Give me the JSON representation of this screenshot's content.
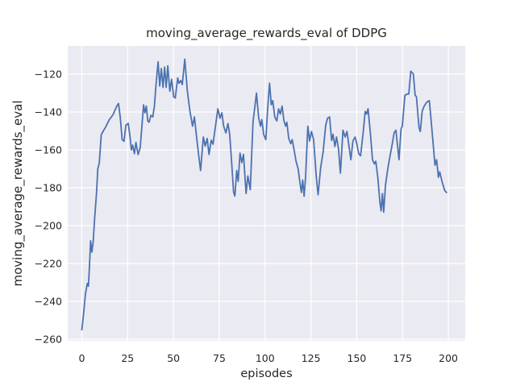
{
  "colors": {
    "line": "#4c72b0",
    "plot_background": "#eaeaf2",
    "grid": "#ffffff",
    "text": "#262626",
    "figure_background": "#ffffff"
  },
  "chart_data": {
    "type": "line",
    "title": "moving_average_rewards_eval of DDPG",
    "xlabel": "episodes",
    "ylabel": "moving_average_rewards_eval",
    "grid": true,
    "legend": false,
    "xlim": [
      -7.7,
      209.2
    ],
    "ylim": [
      -260.85,
      -105.1
    ],
    "x_ticks": [
      0,
      25,
      50,
      75,
      100,
      125,
      150,
      175,
      200
    ],
    "x_tick_labels": [
      "0",
      "25",
      "50",
      "75",
      "100",
      "125",
      "150",
      "175",
      "200"
    ],
    "y_ticks": [
      -260,
      -240,
      -220,
      -200,
      -180,
      -160,
      -140,
      -120
    ],
    "y_tick_labels": [
      "−260",
      "−240",
      "−220",
      "−200",
      "−180",
      "−160",
      "−140",
      "−120"
    ],
    "series": [
      {
        "name": "moving_average_rewards_eval",
        "color": "#4c72b0",
        "points": [
          [
            0,
            -255
          ],
          [
            1,
            -246
          ],
          [
            2,
            -236
          ],
          [
            3,
            -230.5
          ],
          [
            3.6,
            -232
          ],
          [
            4.2,
            -221
          ],
          [
            4.8,
            -208
          ],
          [
            5.5,
            -214
          ],
          [
            6.2,
            -208.5
          ],
          [
            7,
            -196
          ],
          [
            8,
            -183
          ],
          [
            8.7,
            -170
          ],
          [
            9.5,
            -167
          ],
          [
            10.6,
            -152
          ],
          [
            12,
            -149.5
          ],
          [
            13,
            -148
          ],
          [
            15,
            -144
          ],
          [
            17,
            -141.5
          ],
          [
            19,
            -137
          ],
          [
            20,
            -135.5
          ],
          [
            21,
            -143
          ],
          [
            22,
            -154.5
          ],
          [
            23,
            -155.5
          ],
          [
            24,
            -147
          ],
          [
            25.3,
            -146
          ],
          [
            26.3,
            -153
          ],
          [
            27,
            -160
          ],
          [
            27.7,
            -157.5
          ],
          [
            28.7,
            -162
          ],
          [
            29.5,
            -156
          ],
          [
            30.7,
            -162.5
          ],
          [
            31.8,
            -159
          ],
          [
            32.8,
            -147
          ],
          [
            33.7,
            -136.2
          ],
          [
            34.4,
            -140.4
          ],
          [
            35.2,
            -136.9
          ],
          [
            36,
            -144.7
          ],
          [
            36.7,
            -145.4
          ],
          [
            37.7,
            -141.8
          ],
          [
            38.7,
            -142.6
          ],
          [
            39.6,
            -136.9
          ],
          [
            40.6,
            -124.1
          ],
          [
            41.6,
            -113.5
          ],
          [
            42.5,
            -126.3
          ],
          [
            43.4,
            -117
          ],
          [
            44.3,
            -127
          ],
          [
            45.2,
            -116.3
          ],
          [
            46,
            -127
          ],
          [
            46.9,
            -115.6
          ],
          [
            48,
            -129
          ],
          [
            49,
            -122.7
          ],
          [
            50.1,
            -132
          ],
          [
            51,
            -132.6
          ],
          [
            52.3,
            -122
          ],
          [
            53,
            -124.8
          ],
          [
            54,
            -123.4
          ],
          [
            54.8,
            -125.5
          ],
          [
            56.2,
            -112.1
          ],
          [
            57.6,
            -129
          ],
          [
            59,
            -139.7
          ],
          [
            60.4,
            -147.5
          ],
          [
            61.4,
            -142.6
          ],
          [
            62.6,
            -153.2
          ],
          [
            63.7,
            -162.4
          ],
          [
            64.8,
            -170.9
          ],
          [
            66.3,
            -153.2
          ],
          [
            67.3,
            -158
          ],
          [
            68.4,
            -154
          ],
          [
            69.4,
            -162.4
          ],
          [
            70.6,
            -154.9
          ],
          [
            71.6,
            -157
          ],
          [
            73,
            -147
          ],
          [
            74.2,
            -138.3
          ],
          [
            75.4,
            -143.3
          ],
          [
            76.4,
            -140.4
          ],
          [
            77.4,
            -147.5
          ],
          [
            78.6,
            -151
          ],
          [
            79.7,
            -146.1
          ],
          [
            80.7,
            -151.8
          ],
          [
            81.6,
            -164.6
          ],
          [
            82.8,
            -182.3
          ],
          [
            83.5,
            -184.4
          ],
          [
            84.5,
            -170.9
          ],
          [
            85.3,
            -176.6
          ],
          [
            86.3,
            -161.7
          ],
          [
            87.3,
            -166.7
          ],
          [
            88.2,
            -162.4
          ],
          [
            89.6,
            -183
          ],
          [
            90.6,
            -173.8
          ],
          [
            91.9,
            -181
          ],
          [
            93.4,
            -145.4
          ],
          [
            95.3,
            -130
          ],
          [
            96.5,
            -143
          ],
          [
            97.5,
            -147.5
          ],
          [
            98.2,
            -144
          ],
          [
            99.2,
            -151.8
          ],
          [
            100.4,
            -154.6
          ],
          [
            101.4,
            -138.3
          ],
          [
            102.4,
            -124.8
          ],
          [
            103.4,
            -136.2
          ],
          [
            104.2,
            -134
          ],
          [
            105.3,
            -142.6
          ],
          [
            106.4,
            -144.7
          ],
          [
            107.4,
            -138.3
          ],
          [
            108.3,
            -141.1
          ],
          [
            109.3,
            -136.9
          ],
          [
            110.3,
            -144.7
          ],
          [
            111.2,
            -147.5
          ],
          [
            111.9,
            -145.4
          ],
          [
            112.9,
            -153.9
          ],
          [
            114,
            -156.7
          ],
          [
            114.8,
            -154.6
          ],
          [
            115.9,
            -160.3
          ],
          [
            116.9,
            -166
          ],
          [
            118.1,
            -170.2
          ],
          [
            119.1,
            -178
          ],
          [
            119.8,
            -182.5
          ],
          [
            120.5,
            -175.9
          ],
          [
            121.3,
            -184.5
          ],
          [
            122.1,
            -174.5
          ],
          [
            123.3,
            -147.5
          ],
          [
            124.3,
            -155.3
          ],
          [
            125.3,
            -150.3
          ],
          [
            126.5,
            -154.6
          ],
          [
            127.9,
            -173.8
          ],
          [
            128.9,
            -183.7
          ],
          [
            130.3,
            -169.5
          ],
          [
            131.7,
            -161
          ],
          [
            133.1,
            -146.8
          ],
          [
            134.1,
            -143.3
          ],
          [
            135.2,
            -142.6
          ],
          [
            136.3,
            -155
          ],
          [
            137.1,
            -151.8
          ],
          [
            138.1,
            -158.2
          ],
          [
            139,
            -153.2
          ],
          [
            140.1,
            -159.6
          ],
          [
            141.1,
            -172.3
          ],
          [
            142.5,
            -149.6
          ],
          [
            143.7,
            -153.2
          ],
          [
            144.7,
            -150.3
          ],
          [
            145.8,
            -158.2
          ],
          [
            146.8,
            -165.2
          ],
          [
            147.9,
            -155.3
          ],
          [
            149.1,
            -153.2
          ],
          [
            150.1,
            -157
          ],
          [
            151.1,
            -162
          ],
          [
            152.1,
            -163.1
          ],
          [
            153.6,
            -150.3
          ],
          [
            154.6,
            -139.7
          ],
          [
            155.4,
            -141.1
          ],
          [
            156.2,
            -138.3
          ],
          [
            157.5,
            -151.8
          ],
          [
            158.6,
            -165.2
          ],
          [
            159.6,
            -167.4
          ],
          [
            160.4,
            -166
          ],
          [
            161.5,
            -174.5
          ],
          [
            162.6,
            -187.2
          ],
          [
            163.3,
            -192.2
          ],
          [
            164,
            -183
          ],
          [
            164.7,
            -192.9
          ],
          [
            165.7,
            -178.7
          ],
          [
            166.9,
            -170.2
          ],
          [
            167.8,
            -165.2
          ],
          [
            169.3,
            -157.4
          ],
          [
            170.4,
            -151
          ],
          [
            171.4,
            -149.6
          ],
          [
            172.3,
            -158
          ],
          [
            173.1,
            -165.2
          ],
          [
            174.2,
            -148.9
          ],
          [
            174.9,
            -147.5
          ],
          [
            176.3,
            -131.2
          ],
          [
            177.5,
            -130.5
          ],
          [
            178.4,
            -130.5
          ],
          [
            179.5,
            -118.4
          ],
          [
            180.9,
            -119.9
          ],
          [
            181.9,
            -131.2
          ],
          [
            182.6,
            -131.9
          ],
          [
            184,
            -148.2
          ],
          [
            184.7,
            -150.3
          ],
          [
            185.7,
            -139.7
          ],
          [
            186.8,
            -136.9
          ],
          [
            188.2,
            -134.8
          ],
          [
            189.6,
            -134
          ],
          [
            190.8,
            -146.8
          ],
          [
            192,
            -160
          ],
          [
            192.7,
            -168.1
          ],
          [
            193.6,
            -165.2
          ],
          [
            194.6,
            -174.5
          ],
          [
            195.3,
            -171.6
          ],
          [
            196.7,
            -177.3
          ],
          [
            198.1,
            -181.6
          ],
          [
            199,
            -182.5
          ]
        ]
      }
    ]
  }
}
